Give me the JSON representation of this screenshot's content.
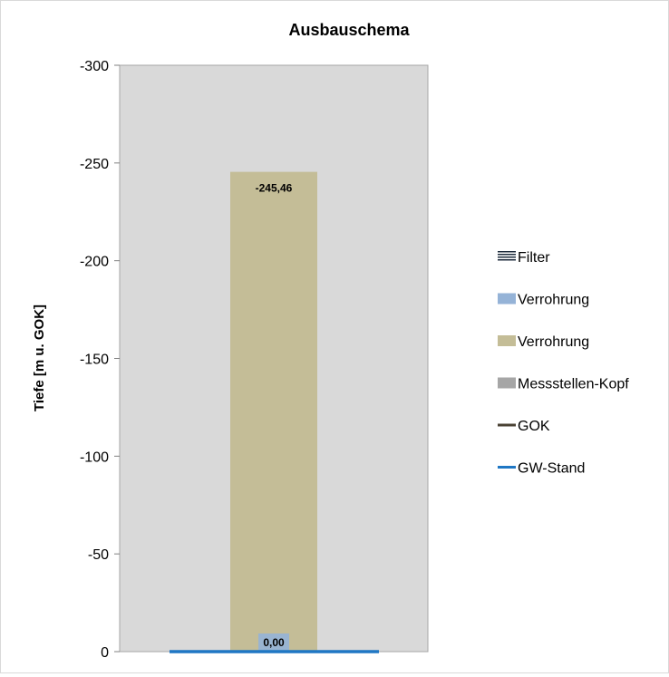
{
  "chart_data": {
    "type": "bar",
    "title": "Ausbauschema",
    "xlabel": "",
    "ylabel": "Tiefe  [m u. GOK]",
    "ylim": [
      -300,
      0
    ],
    "yticks": [
      "-300",
      "-250",
      "-200",
      "-150",
      "-100",
      "-50",
      "0"
    ],
    "ytick_values": [
      -300,
      -250,
      -200,
      -150,
      -100,
      -50,
      0
    ],
    "grid": false,
    "legend_position": "right",
    "plot_background": "#d9d9d9",
    "series": [
      {
        "name": "Filter",
        "kind": "bar",
        "value": 0,
        "color": "#1f2d3d",
        "pattern": "striped"
      },
      {
        "name": "Verrohrung",
        "kind": "bar",
        "value": 0,
        "color": "#95b3d7"
      },
      {
        "name": "Verrohrung",
        "kind": "bar",
        "value": -245.46,
        "color": "#c4bd97",
        "data_label": "-245,46"
      },
      {
        "name": "Messstellen-Kopf",
        "kind": "bar",
        "value": 0,
        "color": "#a6a6a6",
        "data_label": "0,00"
      },
      {
        "name": "GOK",
        "kind": "line",
        "value": 0,
        "color": "#4a4234"
      },
      {
        "name": "GW-Stand",
        "kind": "line",
        "value": 0,
        "color": "#1f77c4"
      }
    ]
  }
}
